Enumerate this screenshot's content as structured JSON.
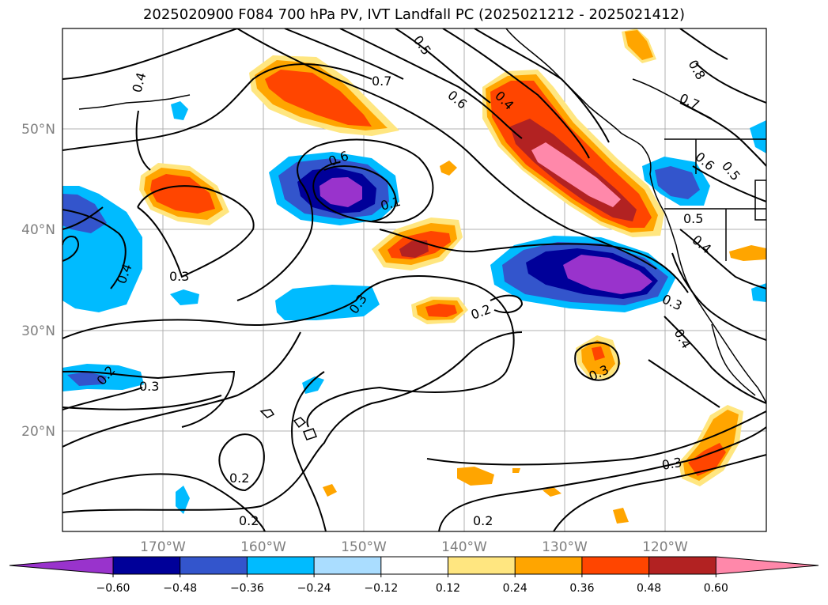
{
  "title": "2025020900 F084 700 hPa PV, IVT Landfall PC (2025021212 - 2025021412)",
  "lat_labels": [
    "50°N",
    "40°N",
    "30°N",
    "20°N"
  ],
  "lon_labels": [
    "170°W",
    "160°W",
    "150°W",
    "140°W",
    "130°W",
    "120°W"
  ],
  "colorbar": {
    "ticks": [
      "−0.60",
      "−0.48",
      "−0.36",
      "−0.24",
      "−0.12",
      "0.12",
      "0.24",
      "0.36",
      "0.48",
      "0.60"
    ],
    "colors": [
      "#9933cc",
      "#000099",
      "#3355cc",
      "#00bbff",
      "#aaddff",
      "#ffffff",
      "#ffe680",
      "#ffa500",
      "#ff4500",
      "#b22222",
      "#ff88aa",
      "#ff88aa"
    ]
  },
  "contour_labels": [
    "0.4",
    "0.7",
    "0.5",
    "0.6",
    "0.4",
    "0.8",
    "0.7",
    "0.6",
    "0.5",
    "0.6",
    "0.1",
    "0.5",
    "0.4",
    "0.4",
    "0.3",
    "0.3",
    "0.3",
    "0.2",
    "0.3",
    "0.4",
    "0.3",
    "0.2",
    "0.3",
    "0.2",
    "0.2",
    "0.2"
  ]
}
